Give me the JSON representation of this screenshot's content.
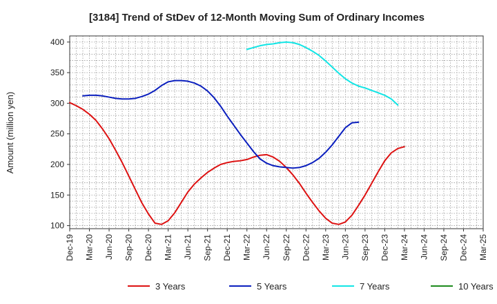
{
  "chart_data": {
    "type": "line",
    "title": "[3184]  Trend of StDev of 12-Month Moving Sum of Ordinary Incomes",
    "ylabel": "Amount (million yen)",
    "xlabel": "",
    "x_categories": [
      "Dec-19",
      "Mar-20",
      "Jun-20",
      "Sep-20",
      "Dec-20",
      "Mar-21",
      "Jun-21",
      "Sep-21",
      "Dec-21",
      "Mar-22",
      "Jun-22",
      "Sep-22",
      "Dec-22",
      "Mar-23",
      "Jun-23",
      "Sep-23",
      "Dec-23",
      "Mar-24",
      "Jun-24",
      "Sep-24",
      "Dec-24",
      "Mar-25"
    ],
    "ylim": [
      95,
      410
    ],
    "yticks": [
      100,
      150,
      200,
      250,
      300,
      350,
      400
    ],
    "grid": true,
    "legend_position": "bottom",
    "series": [
      {
        "name": "3 Years",
        "color": "#dd1111",
        "start_index": 0,
        "values": [
          301,
          296,
          290,
          282,
          272,
          258,
          242,
          223,
          203,
          181,
          159,
          137,
          119,
          104,
          102,
          108,
          121,
          138,
          155,
          168,
          178,
          187,
          194,
          200,
          203,
          205,
          206,
          208,
          212,
          215,
          216,
          212,
          205,
          195,
          183,
          169,
          153,
          138,
          124,
          112,
          104,
          102,
          106,
          117,
          133,
          150,
          169,
          188,
          206,
          219,
          226,
          229
        ]
      },
      {
        "name": "5 Years",
        "color": "#0a1ebe",
        "start_index": 2,
        "values": [
          312,
          313,
          313,
          312,
          310,
          308,
          307,
          307,
          308,
          311,
          315,
          321,
          329,
          335,
          337,
          337,
          336,
          333,
          328,
          320,
          309,
          295,
          279,
          264,
          249,
          235,
          221,
          209,
          202,
          198,
          196,
          195,
          194,
          195,
          198,
          203,
          210,
          220,
          232,
          246,
          260,
          268,
          269
        ]
      },
      {
        "name": "7 Years",
        "color": "#11e5e5",
        "start_index": 27,
        "values": [
          388,
          391,
          394,
          396,
          397,
          399,
          400,
          399,
          396,
          391,
          385,
          378,
          369,
          359,
          349,
          340,
          333,
          328,
          325,
          321,
          317,
          313,
          307,
          297
        ]
      },
      {
        "name": "10 Years",
        "color": "#1c8a1c",
        "start_index": 0,
        "values": []
      }
    ]
  }
}
